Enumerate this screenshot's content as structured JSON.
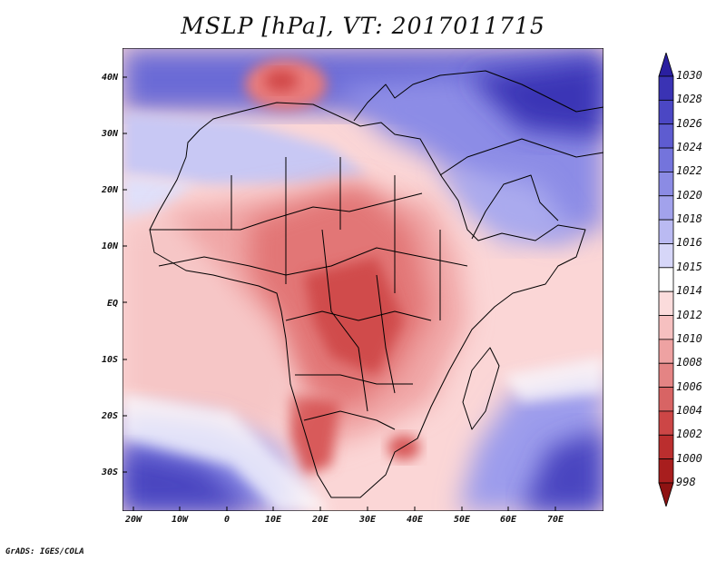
{
  "title": "MSLP [hPa], VT: 2017011715",
  "y_axis_labels": [
    "40N",
    "30N",
    "20N",
    "10N",
    "EQ",
    "10S",
    "20S",
    "30S"
  ],
  "x_axis_labels": [
    "20W",
    "10W",
    "0",
    "10E",
    "20E",
    "30E",
    "40E",
    "50E",
    "60E",
    "70E"
  ],
  "colorbar": {
    "levels": [
      "1030",
      "1028",
      "1026",
      "1024",
      "1022",
      "1020",
      "1018",
      "1016",
      "1015",
      "1014",
      "1012",
      "1010",
      "1008",
      "1006",
      "1004",
      "1002",
      "1000",
      "998"
    ],
    "colors": [
      "#2a1fa0",
      "#3a33b4",
      "#4b47c4",
      "#5e5cd0",
      "#7474dc",
      "#8b8be4",
      "#a2a2ec",
      "#babaf2",
      "#d6d6f8",
      "#ffffff",
      "#fbdcdc",
      "#f6c0c0",
      "#eea2a2",
      "#e48484",
      "#d86464",
      "#cc4646",
      "#bb2e2e",
      "#a81e1e",
      "#8e1212"
    ]
  },
  "credit": "GrADS: IGES/COLA",
  "chart_data": {
    "type": "heatmap",
    "title": "MSLP [hPa], VT: 2017011715",
    "variable": "Mean sea level pressure",
    "units": "hPa",
    "valid_time": "2017011715",
    "x_range_deg": [
      -22,
      80
    ],
    "y_range_deg": [
      -37,
      45
    ],
    "levels_hPa": [
      998,
      1000,
      1002,
      1004,
      1006,
      1008,
      1010,
      1012,
      1014,
      1015,
      1016,
      1018,
      1020,
      1022,
      1024,
      1026,
      1028,
      1030
    ]
  }
}
